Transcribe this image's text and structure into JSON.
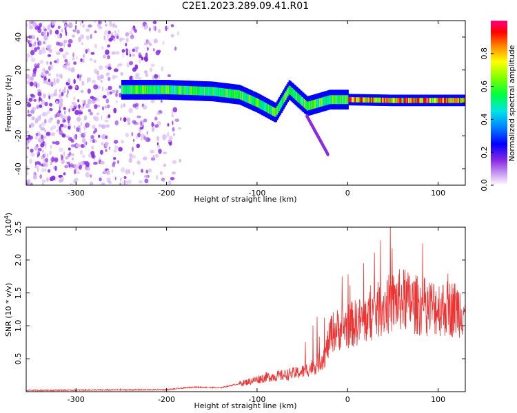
{
  "title": "C2E1.2023.289.09.41.R01",
  "chart_data": [
    {
      "type": "heatmap",
      "xlabel": "Height of straight line (km)",
      "ylabel": "Frequency (Hz)",
      "xlim": [
        -355,
        130
      ],
      "ylim": [
        -50,
        50
      ],
      "x_ticks": [
        "-300",
        "-200",
        "-100",
        "0",
        "100"
      ],
      "y_ticks": [
        "40",
        "20",
        "0",
        "-20",
        "-40"
      ],
      "colorbar": {
        "label": "Normalized spectral amplitude",
        "range": [
          0,
          1
        ],
        "ticks": [
          "0.0",
          "0.2",
          "0.4",
          "0.6",
          "0.8"
        ]
      },
      "ridge": {
        "description_points": [
          {
            "height_km": -250,
            "frequency_hz": 8
          },
          {
            "height_km": -200,
            "frequency_hz": 8
          },
          {
            "height_km": -150,
            "frequency_hz": 7
          },
          {
            "height_km": -120,
            "frequency_hz": 5
          },
          {
            "height_km": -100,
            "frequency_hz": 0
          },
          {
            "height_km": -80,
            "frequency_hz": -6
          },
          {
            "height_km": -65,
            "frequency_hz": 8
          },
          {
            "height_km": -45,
            "frequency_hz": -2
          },
          {
            "height_km": -20,
            "frequency_hz": 2
          },
          {
            "height_km": 0,
            "frequency_hz": 2
          },
          {
            "height_km": 50,
            "frequency_hz": 1.5
          },
          {
            "height_km": 130,
            "frequency_hz": 1.5
          }
        ]
      }
    },
    {
      "type": "line",
      "xlabel": "Height of straight line (km)",
      "ylabel": "SNR (10 * v/v)",
      "y_multiplier": "(x10",
      "y_multiplier_exp": "4",
      "y_multiplier_close": ")",
      "xlim": [
        -355,
        130
      ],
      "ylim": [
        0,
        2.5
      ],
      "x_ticks": [
        "-300",
        "-200",
        "-100",
        "0",
        "100"
      ],
      "y_ticks": [
        "0.5",
        "1.0",
        "1.5",
        "2.0",
        "2.5"
      ],
      "series_color": "#ee3333",
      "envelope": [
        {
          "x": -355,
          "y": 0.02
        },
        {
          "x": -200,
          "y": 0.03
        },
        {
          "x": -170,
          "y": 0.07
        },
        {
          "x": -140,
          "y": 0.06
        },
        {
          "x": -110,
          "y": 0.15
        },
        {
          "x": -90,
          "y": 0.22
        },
        {
          "x": -70,
          "y": 0.25
        },
        {
          "x": -50,
          "y": 0.3
        },
        {
          "x": -35,
          "y": 0.4
        },
        {
          "x": -25,
          "y": 0.55
        },
        {
          "x": -18,
          "y": 0.9
        },
        {
          "x": -10,
          "y": 0.95
        },
        {
          "x": 0,
          "y": 1.0
        },
        {
          "x": 20,
          "y": 1.1
        },
        {
          "x": 40,
          "y": 1.3
        },
        {
          "x": 60,
          "y": 1.4
        },
        {
          "x": 80,
          "y": 1.3
        },
        {
          "x": 100,
          "y": 1.28
        },
        {
          "x": 130,
          "y": 1.25
        }
      ]
    }
  ]
}
